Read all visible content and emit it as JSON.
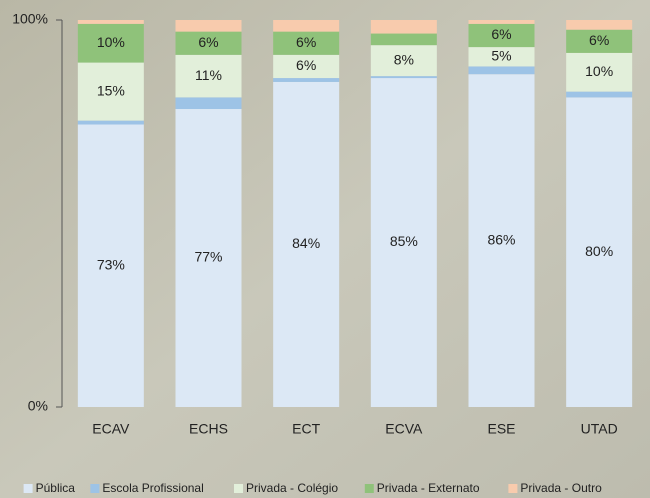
{
  "chart_data": {
    "type": "stacked-bar",
    "categories": [
      "ECAV",
      "ECHS",
      "ECT",
      "ECVA",
      "ESE",
      "UTAD"
    ],
    "series": [
      {
        "name": "Pública",
        "color": "#dce8f5",
        "values": [
          73,
          77,
          84,
          85,
          86,
          80
        ],
        "value_labels": [
          "73%",
          "77%",
          "84%",
          "85%",
          "86%",
          "80%"
        ]
      },
      {
        "name": "Escola Profissional",
        "color": "#9dc3e6",
        "values": [
          1,
          3,
          1,
          0.5,
          2,
          1.5
        ],
        "value_labels": [
          null,
          null,
          null,
          null,
          null,
          null
        ]
      },
      {
        "name": "Privada - Colégio",
        "color": "#e2efda",
        "values": [
          15,
          11,
          6,
          8,
          5,
          10
        ],
        "value_labels": [
          "15%",
          "11%",
          "6%",
          "8%",
          "5%",
          "10%"
        ]
      },
      {
        "name": "Privada - Externato",
        "color": "#8fc27a",
        "values": [
          10,
          6,
          6,
          3,
          6,
          6
        ],
        "value_labels": [
          "10%",
          "6%",
          "6%",
          null,
          "6%",
          "6%"
        ]
      },
      {
        "name": "Privada - Outro",
        "color": "#f8cbad",
        "values": [
          1,
          3,
          3,
          3.5,
          1,
          2.5
        ],
        "value_labels": [
          null,
          null,
          null,
          null,
          null,
          null
        ]
      }
    ],
    "ylim": [
      0,
      100
    ],
    "yticks": [
      {
        "value": 0,
        "label": "0%"
      },
      {
        "value": 100,
        "label": "100%"
      }
    ]
  }
}
